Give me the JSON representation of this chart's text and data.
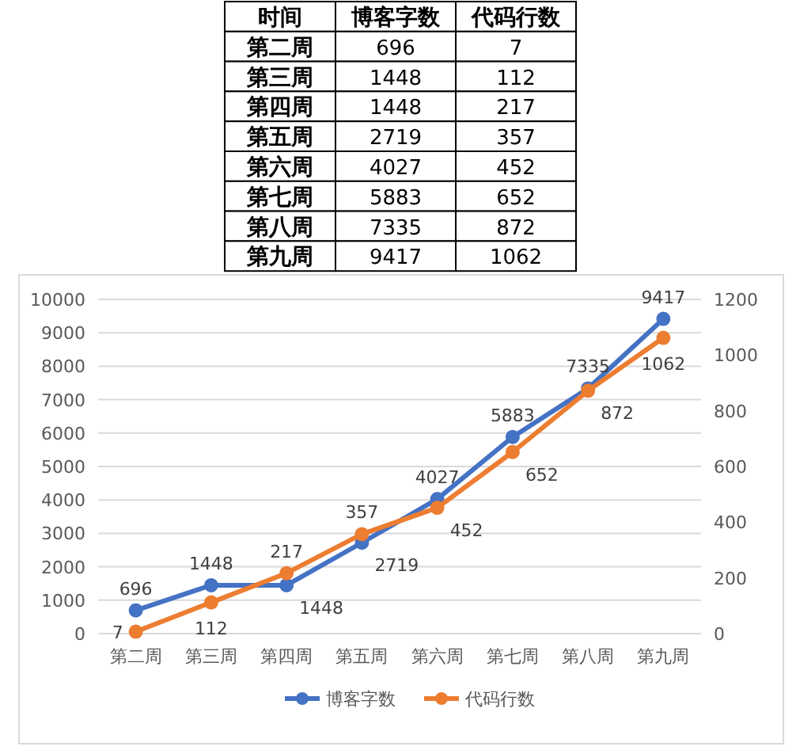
{
  "chart_data": [
    {
      "type": "other",
      "data_labels": true,
      "categories": [
        "第二周",
        "第三周",
        "第四周",
        "第五周",
        "第六周",
        "第七周",
        "第八周",
        "第九周"
      ],
      "annotations": [
        "时间"
      ],
      "series": [
        {
          "name": "博客字数",
          "values": [
            696,
            1448,
            1448,
            2719,
            4027,
            5883,
            7335,
            9417
          ]
        },
        {
          "name": "代码行数",
          "values": [
            7,
            112,
            217,
            357,
            452,
            652,
            872,
            1062
          ]
        }
      ]
    },
    {
      "type": "line",
      "categories": [
        "第二周",
        "第三周",
        "第四周",
        "第五周",
        "第六周",
        "第七周",
        "第八周",
        "第九周"
      ],
      "series": [
        {
          "name": "博客字数",
          "color": "#4472c4",
          "values": [
            696,
            1448,
            1448,
            2719,
            4027,
            5883,
            7335,
            9417
          ]
        },
        {
          "name": "代码行数",
          "color": "#ed7d31",
          "axis": "y2",
          "values": [
            7,
            112,
            217,
            357,
            452,
            652,
            872,
            1062
          ]
        }
      ],
      "ylim": [
        0,
        10000
      ],
      "yticks": [
        0,
        1000,
        2000,
        3000,
        4000,
        5000,
        6000,
        7000,
        8000,
        9000,
        10000
      ],
      "y2lim": [
        0,
        1200
      ],
      "y2ticks": [
        0,
        200,
        400,
        600,
        800,
        1000,
        1200
      ],
      "grid": "y",
      "legend": "bottom",
      "marker": "circle",
      "data_labels": true
    }
  ]
}
